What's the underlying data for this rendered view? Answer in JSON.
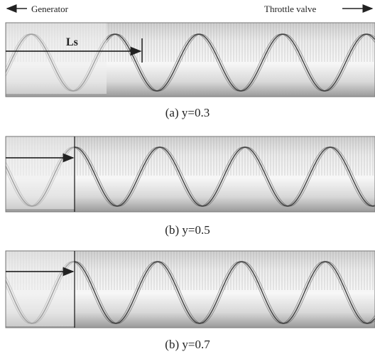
{
  "header": {
    "left_label": "Generator",
    "right_label": "Throttle valve"
  },
  "panels": [
    {
      "annotation": "Ls",
      "caption": "(a) y=0.3"
    },
    {
      "caption": "(b) y=0.5"
    },
    {
      "caption": "(b) y=0.7"
    }
  ]
}
